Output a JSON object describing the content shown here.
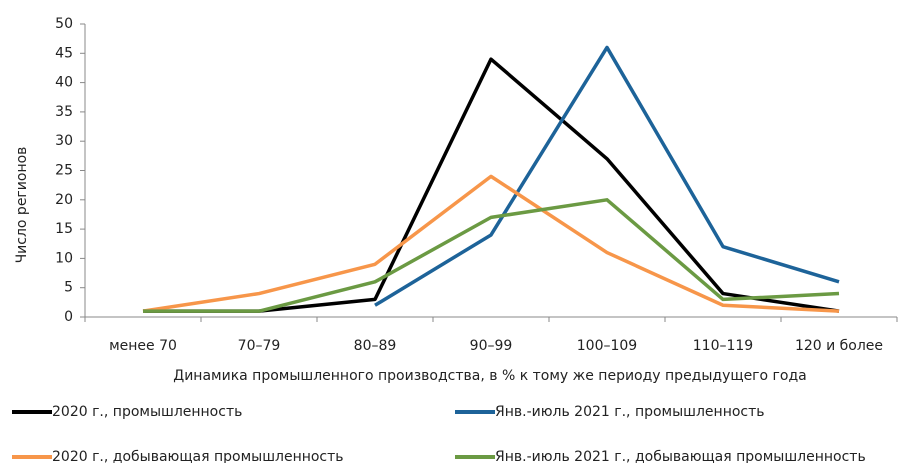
{
  "chart_data": {
    "type": "line",
    "x_label": "Динамика промышленного производства, в % к тому же периоду предыдущего года",
    "y_label": "Число регионов",
    "categories": [
      "менее 70",
      "70–79",
      "80–89",
      "90–99",
      "100–109",
      "110–119",
      "120 и более"
    ],
    "series": [
      {
        "name": "2020 г., промышленность",
        "color": "#000000",
        "values": [
          1,
          1,
          3,
          44,
          27,
          4,
          1
        ]
      },
      {
        "name": "Янв.-июль 2021 г., промышленность",
        "color": "#1d6399",
        "values": [
          null,
          null,
          2,
          14,
          46,
          12,
          6
        ]
      },
      {
        "name": "2020 г., добывающая промышленность",
        "color": "#f7964a",
        "values": [
          1,
          4,
          9,
          24,
          11,
          2,
          1
        ]
      },
      {
        "name": "Янв.-июль 2021 г., добывающая промышленность",
        "color": "#6b9a43",
        "values": [
          1,
          1,
          6,
          17,
          20,
          3,
          4
        ]
      }
    ],
    "ylim": [
      0,
      50
    ],
    "yticks": [
      0,
      5,
      10,
      15,
      20,
      25,
      30,
      35,
      40,
      45,
      50
    ],
    "grid": false
  }
}
